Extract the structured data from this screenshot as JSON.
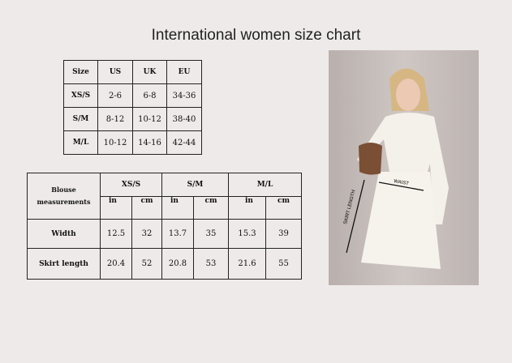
{
  "title": "International women size chart",
  "size_table": {
    "headers": [
      "Size",
      "US",
      "UK",
      "EU"
    ],
    "rows": [
      [
        "XS/S",
        "2-6",
        "6-8",
        "34-36"
      ],
      [
        "S/M",
        "8-12",
        "10-12",
        "38-40"
      ],
      [
        "M/L",
        "10-12",
        "14-16",
        "42-44"
      ]
    ]
  },
  "measure_table": {
    "corner": [
      "Blouse",
      "measurements"
    ],
    "sizes": [
      "XS/S",
      "S/M",
      "M/L"
    ],
    "units": [
      "in",
      "cm"
    ],
    "rows": [
      {
        "label": "Width",
        "values": [
          "12.5",
          "32",
          "13.7",
          "35",
          "15.3",
          "39"
        ]
      },
      {
        "label": "Skirt length",
        "values": [
          "20.4",
          "52",
          "20.8",
          "53",
          "21.6",
          "55"
        ]
      }
    ]
  },
  "photo": {
    "waist_label": "WAIST",
    "skirt_label": "SKIRT LENGTH"
  }
}
